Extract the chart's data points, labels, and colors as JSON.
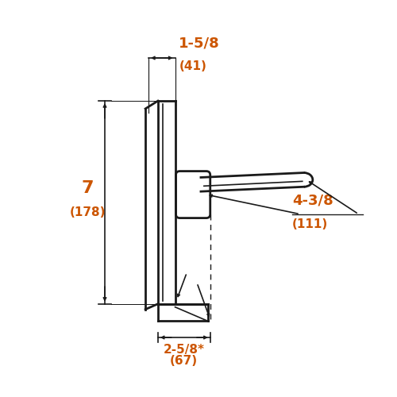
{
  "bg_color": "#ffffff",
  "line_color": "#1a1a1a",
  "dim_color": "#cc5500",
  "fig_width": 5.0,
  "fig_height": 5.0,
  "dpi": 100,
  "labels": {
    "dim1_top": "1-5/8",
    "dim1_sub": "(41)",
    "dim_h_top": "7",
    "dim_h_sub": "(178)",
    "dim_d_top": "2-5/8*",
    "dim_d_sub": "(67)",
    "dim_r_top": "4-3/8",
    "dim_r_sub": "(111)"
  }
}
